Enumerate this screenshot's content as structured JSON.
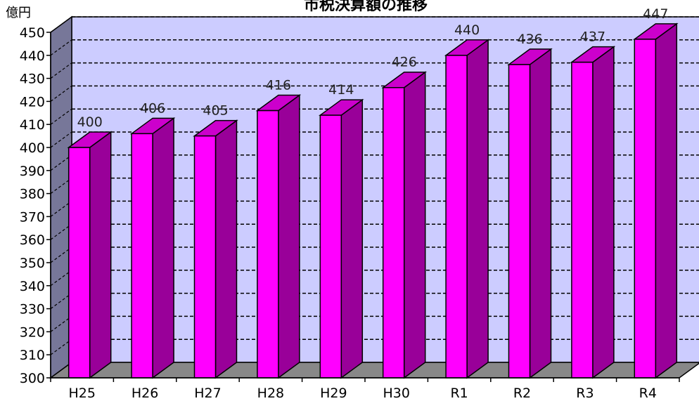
{
  "chart_data": {
    "type": "bar",
    "title": "市税決算額の推移",
    "unit_label": "億円",
    "categories": [
      "H25",
      "H26",
      "H27",
      "H28",
      "H29",
      "H30",
      "R1",
      "R2",
      "R3",
      "R4"
    ],
    "values": [
      400,
      406,
      405,
      416,
      414,
      426,
      440,
      436,
      437,
      447
    ],
    "ylim": [
      300,
      450
    ],
    "y_ticks": [
      300,
      310,
      320,
      330,
      340,
      350,
      360,
      370,
      380,
      390,
      400,
      410,
      420,
      430,
      440,
      450
    ],
    "grid": true,
    "grid_style": "dashed",
    "three_d": true,
    "legend": "none",
    "colors": {
      "bar_front": "#ff00ff",
      "bar_side": "#990099",
      "bar_top": "#cc00cc",
      "back_wall": "#ccccff",
      "side_wall": "#777799",
      "floor": "#888888",
      "grid_line": "#000000"
    }
  }
}
